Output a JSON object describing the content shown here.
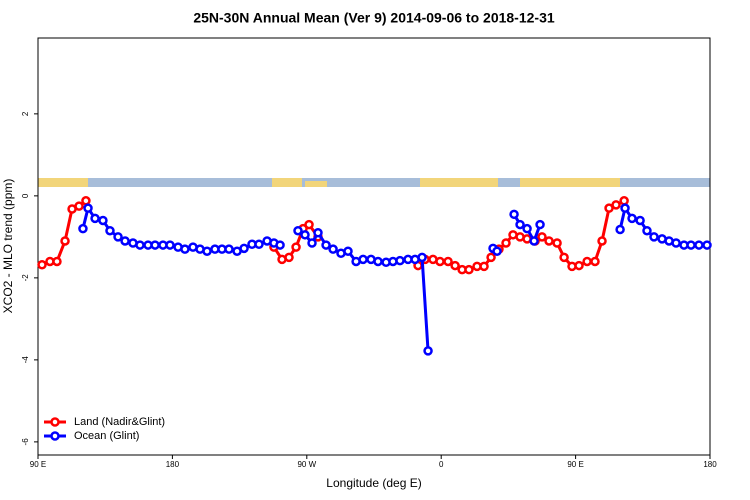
{
  "chart_data": {
    "type": "line",
    "title": "25N-30N Annual Mean (Ver 9)   2014-09-06 to 2018-12-31",
    "x_label": "Longitude (deg E)",
    "y_label": "XCO2 - MLO trend (ppm)",
    "xlim": [
      90,
      540
    ],
    "ylim": [
      -6.32,
      3.85
    ],
    "xticks": [
      {
        "value": 90,
        "label": "90 E"
      },
      180,
      {
        "value": 270,
        "label": "90 W"
      },
      {
        "value": 360,
        "label": "0"
      },
      {
        "value": 450,
        "label": "90 E"
      },
      {
        "value": 540,
        "label": "180"
      }
    ],
    "yticks": [
      -6,
      -4,
      -2,
      0,
      2
    ],
    "legend": "bottom-left",
    "series": [
      {
        "name": "Land (Nadir&Glint)",
        "color": "#ff0000",
        "x": [
          92.7,
          98,
          102.7,
          108.1,
          112.8,
          117.5,
          122.1,
          185,
          248,
          253.4,
          258.1,
          262.8,
          267.5,
          271.5,
          277.5,
          310,
          344.5,
          349.2,
          354.5,
          359.2,
          364.6,
          369.3,
          374,
          378.6,
          384,
          388.7,
          393.4,
          398.7,
          403.4,
          408.1,
          412.8,
          417.5,
          422.9,
          427.5,
          432.2,
          437.6,
          442.3,
          447.6,
          452.3,
          457.7,
          463,
          467.7,
          472.4,
          477.1,
          482.5
        ],
        "values": [
          -1.68,
          -1.6,
          -1.6,
          -1.1,
          -0.32,
          -0.25,
          -0.12,
          null,
          -1.25,
          -1.55,
          -1.5,
          -1.25,
          -0.8,
          -0.7,
          -1.0,
          null,
          -1.7,
          -1.55,
          -1.55,
          -1.6,
          -1.6,
          -1.7,
          -1.8,
          -1.8,
          -1.72,
          -1.72,
          -1.5,
          -1.3,
          -1.15,
          -0.95,
          -1.0,
          -1.05,
          -1.1,
          -1.0,
          -1.1,
          -1.15,
          -1.5,
          -1.72,
          -1.7,
          -1.6,
          -1.6,
          -1.1,
          -0.3,
          -0.22,
          -0.12
        ]
      },
      {
        "name": "Ocean (Glint)",
        "color": "#0000ff",
        "x": [
          120.1,
          123.5,
          128.2,
          133.5,
          138.2,
          143.6,
          148.3,
          153.6,
          158.3,
          163.7,
          168.4,
          173.7,
          178.4,
          183.8,
          188.4,
          193.8,
          198.5,
          203.2,
          208.5,
          213.2,
          217.9,
          223.3,
          228,
          233.3,
          238,
          243.4,
          248,
          252.1,
          258,
          264.1,
          268.8,
          273.5,
          277.5,
          282.9,
          287.6,
          292.9,
          297.6,
          303,
          307.7,
          313,
          317.7,
          323.1,
          327.7,
          332.4,
          337.8,
          342.5,
          347.2,
          351.2,
          370,
          394.7,
          397.4,
          403,
          408.8,
          412.8,
          417.5,
          422.2,
          426.2,
          450,
          479.8,
          483.1,
          487.8,
          493.2,
          497.8,
          502.5,
          507.9,
          512.6,
          517.3,
          522.6,
          527.3,
          532.6,
          538
        ],
        "values": [
          -0.8,
          -0.3,
          -0.55,
          -0.6,
          -0.85,
          -1.0,
          -1.1,
          -1.15,
          -1.2,
          -1.2,
          -1.2,
          -1.2,
          -1.2,
          -1.25,
          -1.3,
          -1.25,
          -1.3,
          -1.35,
          -1.3,
          -1.3,
          -1.3,
          -1.35,
          -1.28,
          -1.18,
          -1.18,
          -1.1,
          -1.15,
          -1.2,
          null,
          -0.85,
          -0.95,
          -1.15,
          -0.9,
          -1.2,
          -1.3,
          -1.4,
          -1.35,
          -1.6,
          -1.55,
          -1.55,
          -1.6,
          -1.62,
          -1.6,
          -1.58,
          -1.55,
          -1.55,
          -1.5,
          -3.78,
          null,
          -1.28,
          -1.35,
          null,
          -0.45,
          -0.7,
          -0.8,
          -1.1,
          -0.7,
          null,
          -0.82,
          -0.3,
          -0.55,
          -0.6,
          -0.85,
          -1.0,
          -1.05,
          -1.1,
          -1.15,
          -1.2,
          -1.2,
          -1.2,
          -1.2
        ]
      }
    ]
  }
}
